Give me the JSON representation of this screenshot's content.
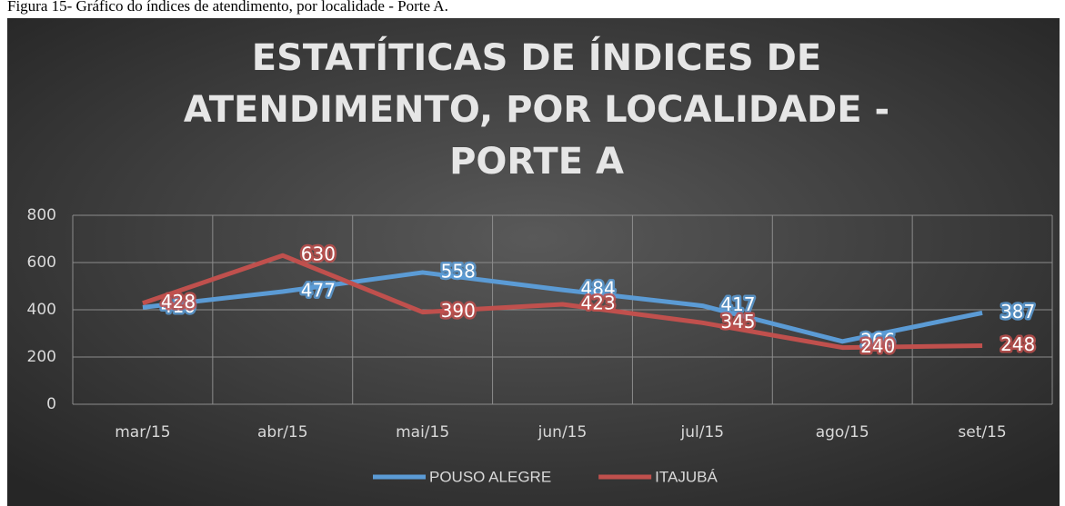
{
  "caption": "Figura 15- Gráfico do índices de atendimento, por localidade - Porte A.",
  "chart_data": {
    "type": "line",
    "title": [
      "ESTATÍTICAS DE ÍNDICES DE",
      "ATENDIMENTO, POR LOCALIDADE -",
      "PORTE A"
    ],
    "categories": [
      "mar/15",
      "abr/15",
      "mai/15",
      "jun/15",
      "jul/15",
      "ago/15",
      "set/15"
    ],
    "series": [
      {
        "name": "POUSO ALEGRE",
        "color": "#5b9bd5",
        "values": [
          410,
          477,
          558,
          484,
          417,
          266,
          387
        ]
      },
      {
        "name": "ITAJUBÁ",
        "color": "#c0504d",
        "values": [
          428,
          630,
          390,
          423,
          345,
          240,
          248
        ]
      }
    ],
    "ylim": [
      0,
      800
    ],
    "yticks": [
      0,
      200,
      400,
      600,
      800
    ],
    "grid": true,
    "legend": "bottom"
  }
}
